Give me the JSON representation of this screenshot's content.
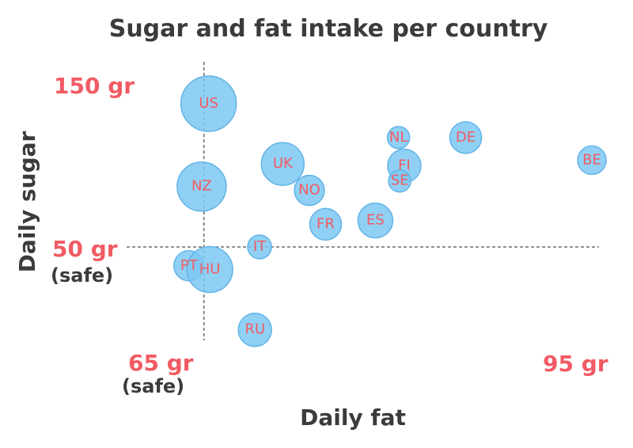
{
  "chart_data": {
    "type": "scatter",
    "title": "Sugar and fat intake per country",
    "xlabel": "Daily fat",
    "ylabel": "Daily sugar",
    "xlim": [
      59,
      100
    ],
    "ylim": [
      0,
      160
    ],
    "grid": false,
    "points": [
      {
        "name": "US",
        "x": 65.4,
        "y": 126.0,
        "z": 35
      },
      {
        "name": "NZ",
        "x": 64.8,
        "y": 82.0,
        "z": 31
      },
      {
        "name": "UK",
        "x": 71.8,
        "y": 94.0,
        "z": 27
      },
      {
        "name": "NO",
        "x": 74.1,
        "y": 80.0,
        "z": 19
      },
      {
        "name": "FR",
        "x": 75.5,
        "y": 62.0,
        "z": 20
      },
      {
        "name": "ES",
        "x": 79.8,
        "y": 64.0,
        "z": 22
      },
      {
        "name": "NL",
        "x": 81.8,
        "y": 108.0,
        "z": 14
      },
      {
        "name": "FI",
        "x": 82.3,
        "y": 93.0,
        "z": 21
      },
      {
        "name": "SE",
        "x": 81.9,
        "y": 85.0,
        "z": 14
      },
      {
        "name": "DE",
        "x": 87.6,
        "y": 108.0,
        "z": 20
      },
      {
        "name": "BE",
        "x": 98.5,
        "y": 96.0,
        "z": 18
      },
      {
        "name": "IT",
        "x": 69.8,
        "y": 50.0,
        "z": 15
      },
      {
        "name": "PT",
        "x": 63.7,
        "y": 40.0,
        "z": 19
      },
      {
        "name": "HU",
        "x": 65.5,
        "y": 38.0,
        "z": 29
      },
      {
        "name": "RU",
        "x": 69.4,
        "y": 6.0,
        "z": 21
      }
    ],
    "reference_lines": [
      {
        "axis": "x",
        "value": 65,
        "label": "65 gr",
        "sublabel": "(safe)"
      },
      {
        "axis": "y",
        "value": 50,
        "label": "50 gr",
        "sublabel": "(safe)"
      }
    ],
    "annotations": {
      "y_top_label": "150 gr",
      "x_right_label": "95 gr"
    }
  },
  "colors": {
    "bubble_fill": "#7cc8f2",
    "bubble_stroke": "#62b4e8",
    "label_red": "#f15b63",
    "text_dark": "#3b3b3b"
  }
}
